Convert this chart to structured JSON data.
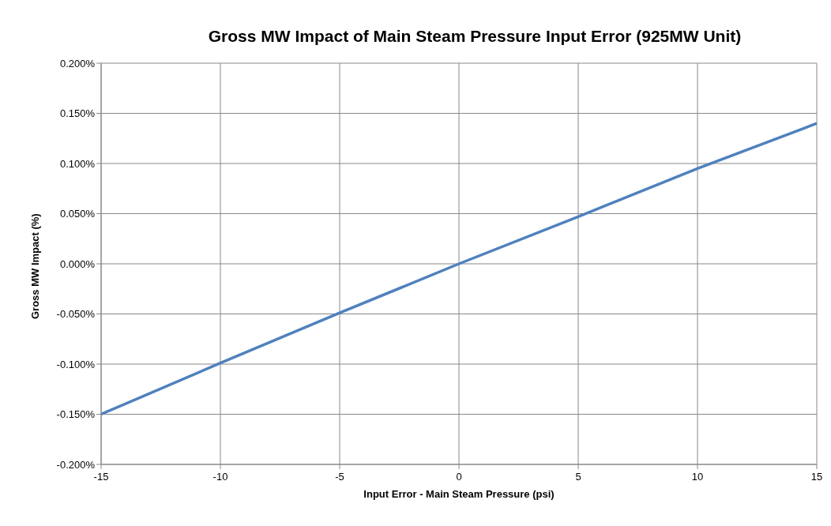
{
  "chart_data": {
    "type": "line",
    "title": "Gross MW Impact of Main Steam Pressure Input Error (925MW Unit)",
    "xlabel": "Input Error - Main Steam Pressure (psi)",
    "ylabel": "Gross MW Impact (%)",
    "x": [
      -15,
      -10,
      -5,
      0,
      5,
      10,
      15
    ],
    "series": [
      {
        "color": "#4f81bd",
        "values": [
          -0.15,
          -0.099,
          -0.049,
          0,
          0.047,
          0.095,
          0.14
        ]
      }
    ],
    "xlim": [
      -15,
      15
    ],
    "xticks": [
      -15,
      -10,
      -5,
      0,
      5,
      10,
      15
    ],
    "ylim": [
      -0.2,
      0.2
    ],
    "yticks": [
      {
        "value": -0.2,
        "label": "-0.200%"
      },
      {
        "value": -0.15,
        "label": "-0.150%"
      },
      {
        "value": -0.1,
        "label": "-0.100%"
      },
      {
        "value": -0.05,
        "label": "-0.050%"
      },
      {
        "value": 0,
        "label": "0.000%"
      },
      {
        "value": 0.05,
        "label": "0.050%"
      },
      {
        "value": 0.1,
        "label": "0.100%"
      },
      {
        "value": 0.15,
        "label": "0.150%"
      },
      {
        "value": 0.2,
        "label": "0.200%"
      }
    ],
    "grid": true,
    "marker": "none",
    "line_style": "solid"
  }
}
